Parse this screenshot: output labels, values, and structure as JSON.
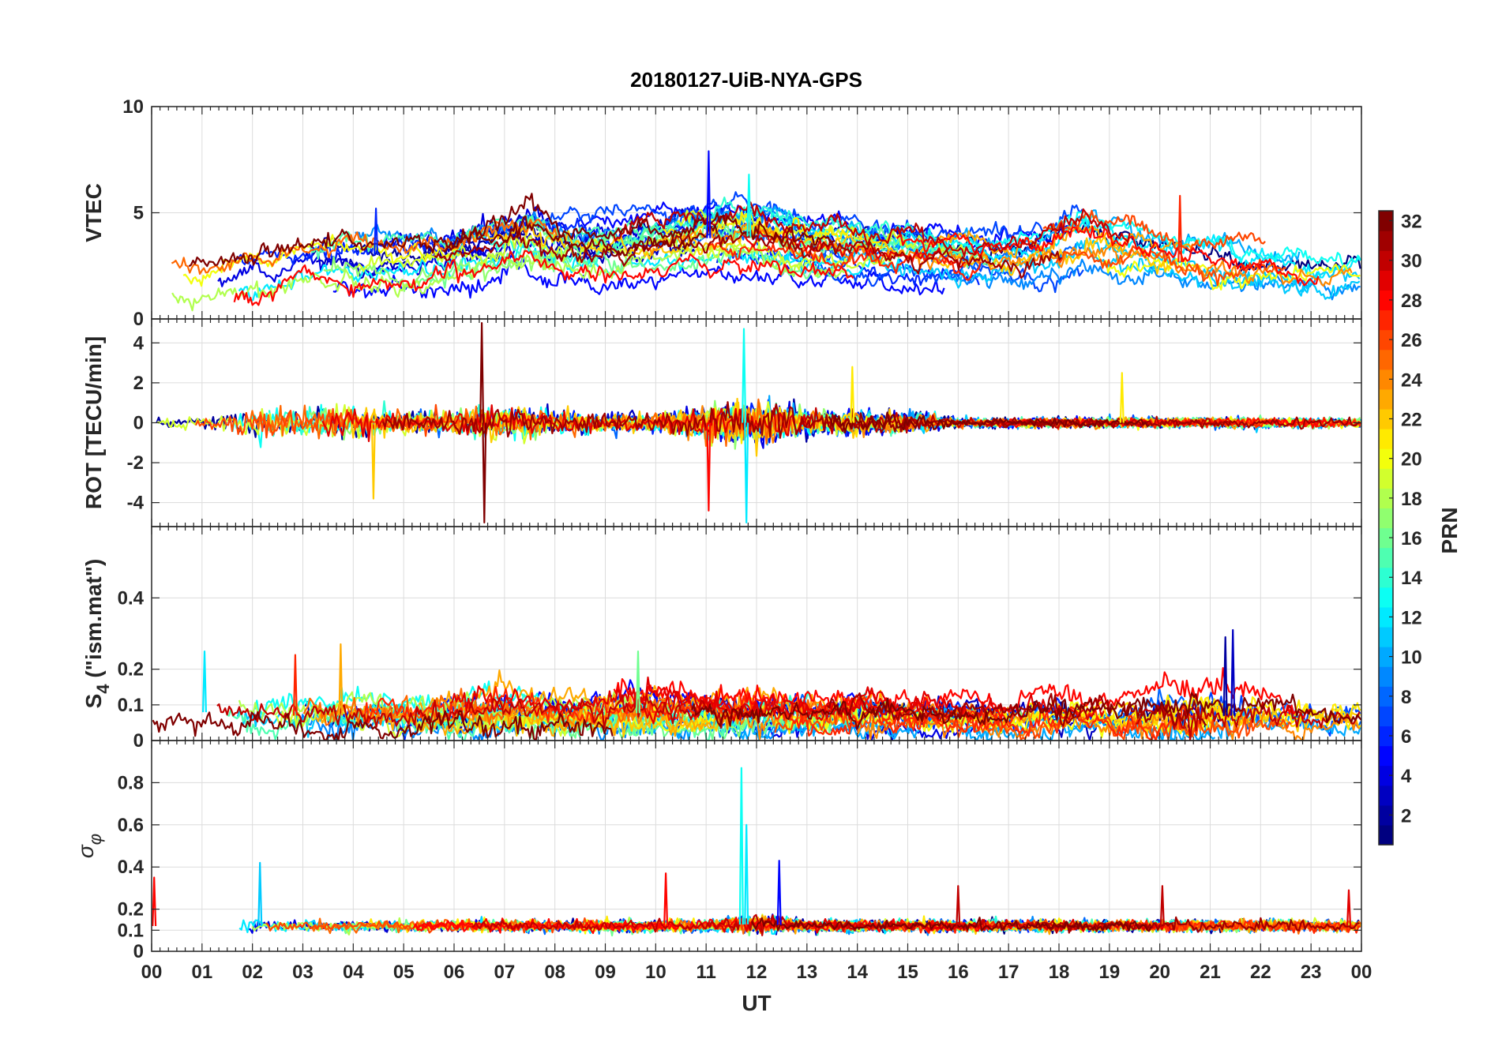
{
  "chart_data": {
    "type": "line",
    "title": "20180127-UiB-NYA-GPS",
    "xlabel": "UT",
    "x_tick_labels": [
      "00",
      "01",
      "02",
      "03",
      "04",
      "05",
      "06",
      "07",
      "08",
      "09",
      "10",
      "11",
      "12",
      "13",
      "14",
      "15",
      "16",
      "17",
      "18",
      "19",
      "20",
      "21",
      "22",
      "23",
      "00"
    ],
    "xlim_hours": [
      0,
      24
    ],
    "grid": true,
    "panels": [
      {
        "id": "vtec",
        "ylabel": "VTEC",
        "ylim": [
          0,
          10
        ],
        "yticks": [
          0,
          5,
          10
        ],
        "ytick_labels": [
          "0",
          "5",
          "10"
        ],
        "approx_profile": {
          "x_hours": [
            0,
            1,
            2,
            3,
            4,
            5,
            6,
            7,
            7.5,
            8,
            9,
            10,
            11,
            12,
            13,
            14,
            15,
            16,
            17,
            18,
            18.5,
            19,
            20,
            21,
            22,
            23,
            24
          ],
          "center": [
            2.2,
            1.9,
            2.3,
            2.8,
            3.1,
            2.9,
            3.2,
            3.8,
            4.2,
            3.6,
            3.4,
            3.5,
            3.8,
            3.9,
            3.4,
            3.3,
            3.1,
            2.8,
            2.7,
            3.2,
            3.6,
            3.3,
            2.8,
            2.5,
            2.2,
            2.0,
            2.1
          ],
          "spread": [
            0.9,
            0.9,
            1.1,
            1.0,
            1.1,
            1.0,
            1.1,
            1.2,
            1.3,
            1.1,
            1.0,
            1.0,
            1.1,
            1.1,
            0.9,
            0.9,
            0.9,
            0.9,
            0.9,
            1.2,
            1.2,
            1.1,
            1.0,
            1.0,
            0.9,
            0.8,
            0.8
          ]
        },
        "notable_peaks": [
          {
            "t": 11.05,
            "value": 7.9,
            "prn": 5
          },
          {
            "t": 11.85,
            "value": 6.8,
            "prn": 13
          },
          {
            "t": 4.45,
            "value": 5.2,
            "prn": 6
          },
          {
            "t": 20.4,
            "value": 5.8,
            "prn": 27
          }
        ]
      },
      {
        "id": "rot",
        "ylabel": "ROT [TECU/min]",
        "ylim": [
          -5.2,
          5.2
        ],
        "yticks": [
          -4,
          -2,
          0,
          2,
          4
        ],
        "ytick_labels": [
          "-4",
          "-2",
          "0",
          "2",
          "4"
        ],
        "approx_profile": {
          "x_hours": [
            0,
            1,
            2,
            3,
            4,
            5,
            6,
            7,
            8,
            9,
            10,
            11,
            12,
            13,
            14,
            15,
            16,
            17,
            18,
            19,
            20,
            21,
            22,
            23,
            24
          ],
          "center": [
            0,
            0,
            0,
            0,
            0,
            0,
            0,
            0,
            0,
            0,
            0,
            0,
            0,
            0,
            0,
            0,
            0,
            0,
            0,
            0,
            0,
            0,
            0,
            0,
            0
          ],
          "spread": [
            0.25,
            0.25,
            0.8,
            0.6,
            0.7,
            0.4,
            0.5,
            0.7,
            0.5,
            0.4,
            0.4,
            0.7,
            1.0,
            0.5,
            0.5,
            0.4,
            0.2,
            0.2,
            0.2,
            0.2,
            0.2,
            0.2,
            0.2,
            0.2,
            0.2
          ]
        },
        "notable_peaks": [
          {
            "t": 6.55,
            "value": 5.0,
            "prn": 32
          },
          {
            "t": 6.6,
            "value": -5.0,
            "prn": 32
          },
          {
            "t": 11.75,
            "value": 4.7,
            "prn": 13
          },
          {
            "t": 11.8,
            "value": -5.0,
            "prn": 12
          },
          {
            "t": 11.05,
            "value": -4.4,
            "prn": 28
          },
          {
            "t": 4.4,
            "value": -3.8,
            "prn": 22
          },
          {
            "t": 13.9,
            "value": 2.8,
            "prn": 21
          },
          {
            "t": 19.25,
            "value": 2.5,
            "prn": 21
          }
        ]
      },
      {
        "id": "s4",
        "ylabel_main": "S",
        "ylabel_sub": "4",
        "ylabel_rest": " (\"ism.mat\")",
        "ylim": [
          0,
          0.6
        ],
        "yticks": [
          0,
          0.1,
          0.2,
          0.4
        ],
        "ytick_labels": [
          "0",
          "0.1",
          "0.2",
          "0.4"
        ],
        "approx_profile": {
          "x_hours": [
            0,
            1,
            2,
            3,
            4,
            5,
            6,
            7,
            8,
            9,
            10,
            11,
            12,
            13,
            14,
            15,
            16,
            17,
            18,
            19,
            20,
            21,
            22,
            23,
            24
          ],
          "center": [
            0.07,
            0.08,
            0.07,
            0.07,
            0.07,
            0.06,
            0.07,
            0.07,
            0.07,
            0.07,
            0.08,
            0.07,
            0.07,
            0.07,
            0.07,
            0.07,
            0.07,
            0.06,
            0.07,
            0.06,
            0.07,
            0.07,
            0.07,
            0.06,
            0.06
          ],
          "spread": [
            0.04,
            0.05,
            0.05,
            0.04,
            0.05,
            0.04,
            0.05,
            0.05,
            0.04,
            0.05,
            0.05,
            0.04,
            0.05,
            0.04,
            0.04,
            0.04,
            0.04,
            0.03,
            0.04,
            0.03,
            0.05,
            0.07,
            0.04,
            0.03,
            0.03
          ]
        },
        "notable_peaks": [
          {
            "t": 3.75,
            "value": 0.27,
            "prn": 23
          },
          {
            "t": 9.65,
            "value": 0.25,
            "prn": 16
          },
          {
            "t": 21.45,
            "value": 0.31,
            "prn": 3
          },
          {
            "t": 21.3,
            "value": 0.29,
            "prn": 2
          },
          {
            "t": 1.05,
            "value": 0.25,
            "prn": 12
          },
          {
            "t": 2.85,
            "value": 0.24,
            "prn": 27
          }
        ]
      },
      {
        "id": "sigma_phi",
        "ylabel_main": "σ",
        "ylabel_sub": "φ",
        "ylim": [
          0,
          1.0
        ],
        "yticks": [
          0,
          0.1,
          0.2,
          0.4,
          0.6,
          0.8
        ],
        "ytick_labels": [
          "0",
          "0.1",
          "0.2",
          "0.4",
          "0.6",
          "0.8"
        ],
        "approx_profile": {
          "x_hours": [
            0,
            1,
            2,
            3,
            4,
            5,
            6,
            7,
            8,
            9,
            10,
            11,
            12,
            13,
            14,
            15,
            16,
            17,
            18,
            19,
            20,
            21,
            22,
            23,
            24
          ],
          "center": [
            0.12,
            0.12,
            0.12,
            0.12,
            0.12,
            0.12,
            0.12,
            0.12,
            0.12,
            0.12,
            0.12,
            0.12,
            0.13,
            0.12,
            0.12,
            0.12,
            0.12,
            0.12,
            0.12,
            0.12,
            0.12,
            0.12,
            0.12,
            0.12,
            0.12
          ],
          "spread": [
            0.02,
            0.02,
            0.03,
            0.02,
            0.02,
            0.02,
            0.02,
            0.02,
            0.02,
            0.02,
            0.02,
            0.02,
            0.03,
            0.02,
            0.02,
            0.02,
            0.02,
            0.02,
            0.02,
            0.02,
            0.02,
            0.02,
            0.02,
            0.02,
            0.02
          ]
        },
        "notable_peaks": [
          {
            "t": 11.7,
            "value": 0.87,
            "prn": 13
          },
          {
            "t": 11.8,
            "value": 0.6,
            "prn": 12
          },
          {
            "t": 12.45,
            "value": 0.43,
            "prn": 5
          },
          {
            "t": 2.15,
            "value": 0.42,
            "prn": 11
          },
          {
            "t": 0.05,
            "value": 0.35,
            "prn": 28
          },
          {
            "t": 10.2,
            "value": 0.37,
            "prn": 28
          },
          {
            "t": 16.0,
            "value": 0.31,
            "prn": 30
          },
          {
            "t": 20.05,
            "value": 0.31,
            "prn": 30
          },
          {
            "t": 23.75,
            "value": 0.29,
            "prn": 29
          }
        ]
      }
    ],
    "colorbar": {
      "label": "PRN",
      "range": [
        1,
        32
      ],
      "tick_labels": [
        "2",
        "4",
        "6",
        "8",
        "10",
        "12",
        "14",
        "16",
        "18",
        "20",
        "22",
        "24",
        "26",
        "28",
        "30",
        "32"
      ],
      "colormap": "jet",
      "levels": 32
    },
    "series_prns": [
      1,
      2,
      3,
      4,
      5,
      6,
      7,
      8,
      9,
      10,
      11,
      12,
      13,
      14,
      15,
      16,
      17,
      18,
      19,
      20,
      21,
      22,
      23,
      24,
      25,
      26,
      27,
      28,
      29,
      30,
      31,
      32
    ]
  }
}
